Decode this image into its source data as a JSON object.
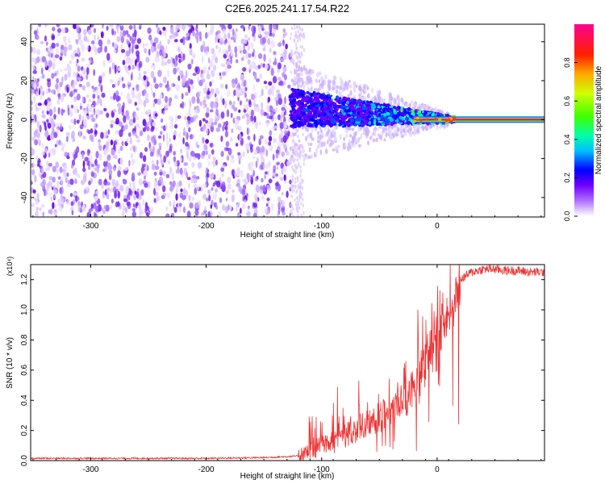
{
  "title": "C2E6.2025.241.17.54.R22",
  "chart_data": [
    {
      "type": "heatmap",
      "xlabel": "Height of straight line (km)",
      "ylabel": "Frequency (Hz)",
      "xlim": [
        -352,
        93
      ],
      "ylim": [
        -50,
        49
      ],
      "x_ticks": [
        -300,
        -200,
        -100,
        0
      ],
      "x_tick_labels": [
        "-300",
        "-200",
        "-100",
        "0"
      ],
      "y_ticks": [
        -40,
        -20,
        0,
        20,
        40
      ],
      "y_tick_labels": [
        "-40",
        "-20",
        "0",
        "20",
        "40"
      ],
      "regions": [
        {
          "name": "noise",
          "x": [
            -352,
            -127
          ],
          "freq": [
            -50,
            49
          ]
        },
        {
          "name": "signal-broadening",
          "x": [
            -127,
            -20
          ],
          "center_freq": 0,
          "spread_start_hz": 14
        },
        {
          "name": "carrier-line",
          "x": [
            -20,
            93
          ],
          "freq": 0
        }
      ],
      "colorbar": {
        "label": "Normalized spectral amplitude",
        "range": [
          0,
          1
        ],
        "ticks": [
          0.0,
          0.2,
          0.4,
          0.6,
          0.8
        ],
        "tick_labels": [
          "0.0",
          "0.2",
          "0.4",
          "0.6",
          "0.8"
        ],
        "colors": [
          "#ffffff",
          "#8000ff",
          "#0000ff",
          "#00ffff",
          "#00ff00",
          "#ffff00",
          "#ff0000",
          "#ff00a0"
        ]
      }
    },
    {
      "type": "line",
      "xlabel": "Height of straight line (km)",
      "ylabel": "SNR (10 * v/v)",
      "multiplier_label": "(x10⁴)",
      "xlim": [
        -352,
        93
      ],
      "ylim": [
        0,
        1.3
      ],
      "x_ticks": [
        -300,
        -200,
        -100,
        0
      ],
      "x_tick_labels": [
        "-300",
        "-200",
        "-100",
        "0"
      ],
      "y_ticks": [
        0.0,
        0.2,
        0.4,
        0.6,
        0.8,
        1.0,
        1.2
      ],
      "y_tick_labels": [
        "0.0",
        "0.2",
        "0.4",
        "0.6",
        "0.8",
        "1.0",
        "1.2"
      ],
      "color": "#ee3333",
      "series": [
        {
          "name": "SNR",
          "x": [
            -352,
            -300,
            -250,
            -200,
            -150,
            -120,
            -110,
            -100,
            -90,
            -80,
            -70,
            -60,
            -50,
            -40,
            -30,
            -20,
            -15,
            -10,
            -5,
            0,
            5,
            10,
            15,
            20,
            30,
            40,
            50,
            60,
            70,
            80,
            93
          ],
          "y": [
            0.015,
            0.015,
            0.015,
            0.015,
            0.02,
            0.03,
            0.06,
            0.1,
            0.14,
            0.17,
            0.2,
            0.24,
            0.28,
            0.33,
            0.4,
            0.47,
            0.6,
            0.68,
            0.77,
            0.82,
            0.9,
            1.0,
            1.12,
            1.2,
            1.25,
            1.27,
            1.27,
            1.26,
            1.26,
            1.25,
            1.25
          ]
        }
      ]
    }
  ]
}
